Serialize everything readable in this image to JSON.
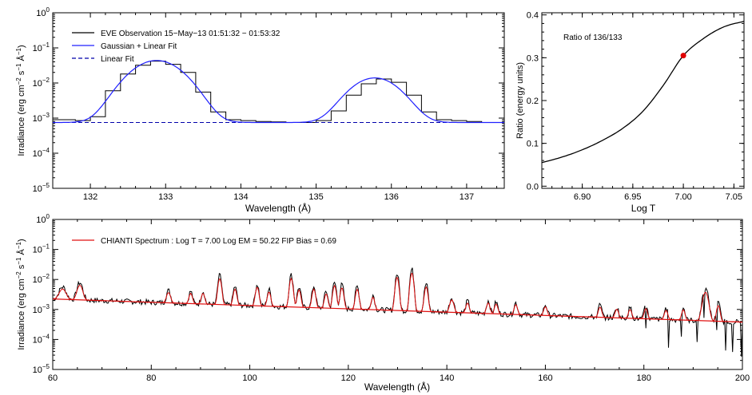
{
  "chart_data": [
    {
      "type": "line",
      "panel": "top-left",
      "xlabel": "Wavelength (Å)",
      "ylabel_parts": [
        "Irradiance (erg cm",
        "−2",
        " s",
        "−1",
        " Å",
        "−1",
        ")"
      ],
      "xlim": [
        131.5,
        137.5
      ],
      "ylim_log10": [
        -5,
        0
      ],
      "yscale": "log",
      "xticks": [
        132,
        133,
        134,
        135,
        136,
        137
      ],
      "yticks_exp": [
        0,
        -1,
        -2,
        -3,
        -4,
        -5
      ],
      "ytick_labels": [
        "10",
        "10",
        "10",
        "10",
        "10",
        "10"
      ],
      "ytick_exps": [
        "0",
        "−1",
        "−2",
        "−3",
        "−4",
        "−5"
      ],
      "legend_position": "top-left",
      "legend": [
        {
          "label": "EVE Observation 15−May−13 01:51:32 − 01:53:32",
          "color": "#000000",
          "dash": false
        },
        {
          "label": "Gaussian + Linear Fit",
          "color": "#2020ff",
          "dash": false
        },
        {
          "label": "Linear Fit",
          "color": "#0000aa",
          "dash": true
        }
      ],
      "series": [
        {
          "name": "EVE Observation 15−May−13 01:51:32 − 01:53:32",
          "style": "step",
          "x": [
            131.5,
            131.8,
            132.0,
            132.2,
            132.4,
            132.6,
            132.8,
            133.0,
            133.2,
            133.4,
            133.6,
            133.8,
            134.0,
            134.2,
            134.4,
            134.6,
            134.8,
            135.0,
            135.2,
            135.4,
            135.6,
            135.8,
            136.0,
            136.2,
            136.4,
            136.6,
            136.8,
            137.0,
            137.2,
            137.5
          ],
          "y": [
            0.0009,
            0.00085,
            0.0011,
            0.006,
            0.018,
            0.032,
            0.042,
            0.034,
            0.02,
            0.0055,
            0.0015,
            0.0009,
            0.00085,
            0.0008,
            0.00078,
            0.00075,
            0.00075,
            0.00085,
            0.0016,
            0.0045,
            0.0095,
            0.013,
            0.0105,
            0.0045,
            0.0015,
            0.0009,
            0.00085,
            0.0008,
            0.00075,
            0.0007
          ]
        },
        {
          "name": "Gaussian + Linear Fit",
          "style": "gauss",
          "baseline": [
            0.00075,
            0.0
          ],
          "peaks": [
            {
              "center": 132.88,
              "amp": 0.043,
              "sigma": 0.28
            },
            {
              "center": 135.78,
              "amp": 0.0132,
              "sigma": 0.26
            }
          ]
        },
        {
          "name": "Linear Fit",
          "style": "dash",
          "x": [
            131.5,
            137.5
          ],
          "y": [
            0.00075,
            0.00075
          ]
        }
      ]
    },
    {
      "type": "line",
      "panel": "top-right",
      "xlabel": "Log T",
      "ylabel": "Ratio (energy units)",
      "annotation": "Ratio of 136/133",
      "xlim": [
        6.86,
        7.06
      ],
      "ylim": [
        -0.005,
        0.405
      ],
      "xticks": [
        "6.90",
        "6.95",
        "7.00",
        "7.05"
      ],
      "xtick_values": [
        6.9,
        6.95,
        7.0,
        7.05
      ],
      "yticks": [
        "0.0",
        "0.1",
        "0.2",
        "0.3",
        "0.4"
      ],
      "ytick_values": [
        0.0,
        0.1,
        0.2,
        0.3,
        0.4
      ],
      "series": [
        {
          "x": [
            6.86,
            6.88,
            6.9,
            6.92,
            6.94,
            6.96,
            6.98,
            7.0,
            7.02,
            7.04,
            7.06
          ],
          "y": [
            0.055,
            0.068,
            0.085,
            0.107,
            0.135,
            0.175,
            0.235,
            0.305,
            0.345,
            0.372,
            0.385
          ],
          "color": "#000000"
        }
      ],
      "marker": {
        "x": 7.0,
        "y": 0.305,
        "color": "#e00000"
      }
    },
    {
      "type": "line",
      "panel": "bottom",
      "xlabel": "Wavelength (Å)",
      "ylabel_parts": [
        "Irradiance (erg cm",
        "−2",
        " s",
        "−1",
        " Å",
        "−1",
        ")"
      ],
      "xlim": [
        60,
        200
      ],
      "ylim_log10": [
        -5,
        0
      ],
      "yscale": "log",
      "xticks": [
        60,
        80,
        100,
        120,
        140,
        160,
        180,
        200
      ],
      "yticks_exp": [
        0,
        -1,
        -2,
        -3,
        -4,
        -5
      ],
      "ytick_labels": [
        "10",
        "10",
        "10",
        "10",
        "10",
        "10"
      ],
      "ytick_exps": [
        "0",
        "−1",
        "−2",
        "−3",
        "−4",
        "−5"
      ],
      "legend": [
        {
          "label": "CHIANTI Spectrum : Log T = 7.00 Log EM = 50.22 FIP Bias = 0.69",
          "color": "#e01010"
        }
      ],
      "continuum": {
        "x": [
          60,
          200
        ],
        "log10_y": [
          -2.65,
          -3.42
        ]
      },
      "lines": [
        {
          "x": 62.0,
          "p": 1.5,
          "w": 1.0
        },
        {
          "x": 65.5,
          "p": 2.6,
          "w": 0.8
        },
        {
          "x": 83.5,
          "p": 1.5,
          "w": 0.6
        },
        {
          "x": 88.0,
          "p": 1.5,
          "w": 0.5
        },
        {
          "x": 90.5,
          "p": 1.6,
          "w": 0.5
        },
        {
          "x": 93.9,
          "p": 8.0,
          "w": 0.5
        },
        {
          "x": 97.0,
          "p": 3.0,
          "w": 0.5
        },
        {
          "x": 101.5,
          "p": 4.0,
          "w": 0.5
        },
        {
          "x": 103.9,
          "p": 2.5,
          "w": 0.5
        },
        {
          "x": 108.4,
          "p": 10.0,
          "w": 0.5
        },
        {
          "x": 110.0,
          "p": 3.5,
          "w": 0.5
        },
        {
          "x": 113.0,
          "p": 4.0,
          "w": 0.5
        },
        {
          "x": 115.5,
          "p": 2.5,
          "w": 0.5
        },
        {
          "x": 117.2,
          "p": 6.0,
          "w": 0.5
        },
        {
          "x": 118.7,
          "p": 5.0,
          "w": 0.5
        },
        {
          "x": 121.8,
          "p": 4.5,
          "w": 0.5
        },
        {
          "x": 125.0,
          "p": 2.0,
          "w": 0.5
        },
        {
          "x": 129.9,
          "p": 15.0,
          "w": 0.5
        },
        {
          "x": 132.9,
          "p": 22.0,
          "w": 0.5
        },
        {
          "x": 135.8,
          "p": 7.0,
          "w": 0.5
        },
        {
          "x": 141.0,
          "p": 2.0,
          "w": 0.6
        },
        {
          "x": 144.2,
          "p": 1.4,
          "w": 0.5
        },
        {
          "x": 148.4,
          "p": 1.6,
          "w": 0.5
        },
        {
          "x": 150.0,
          "p": 1.4,
          "w": 0.5
        },
        {
          "x": 154.0,
          "p": 1.4,
          "w": 0.5
        },
        {
          "x": 160.0,
          "p": 1.2,
          "w": 0.5
        },
        {
          "x": 171.1,
          "p": 1.5,
          "w": 0.5
        },
        {
          "x": 174.5,
          "p": 1.2,
          "w": 0.5
        },
        {
          "x": 177.2,
          "p": 1.2,
          "w": 0.5
        },
        {
          "x": 180.4,
          "p": 1.5,
          "w": 0.5
        },
        {
          "x": 184.5,
          "p": 1.3,
          "w": 0.5
        },
        {
          "x": 188.0,
          "p": 1.5,
          "w": 0.5
        },
        {
          "x": 192.5,
          "p": 10.0,
          "w": 0.8
        },
        {
          "x": 195.1,
          "p": 3.0,
          "w": 0.5
        }
      ],
      "series": [
        {
          "name": "EVE",
          "color": "#000000"
        },
        {
          "name": "CHIANTI Spectrum : Log T = 7.00 Log EM = 50.22 FIP Bias = 0.69",
          "color": "#e01010"
        }
      ]
    }
  ]
}
